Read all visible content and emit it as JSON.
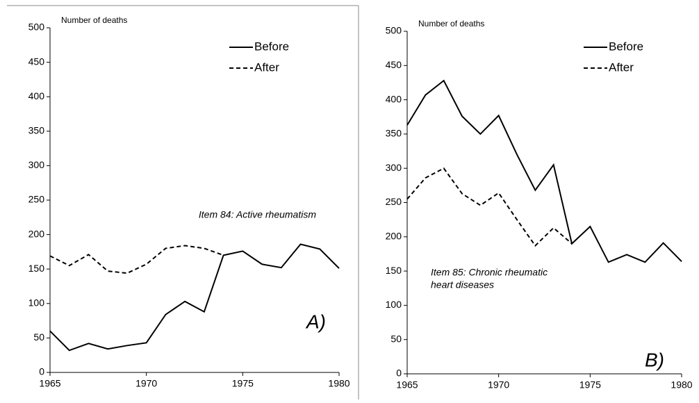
{
  "chart_data": [
    {
      "type": "line",
      "ylabel": "Number of deaths",
      "x": [
        1965,
        1966,
        1967,
        1968,
        1969,
        1970,
        1971,
        1972,
        1973,
        1974,
        1975,
        1976,
        1977,
        1978,
        1979,
        1980
      ],
      "series": [
        {
          "name": "Before",
          "color": "#000000",
          "dash": "solid",
          "values": [
            60,
            32,
            42,
            34,
            39,
            43,
            84,
            103,
            88,
            170,
            176,
            157,
            152,
            186,
            179,
            151
          ]
        },
        {
          "name": "After",
          "color": "#000000",
          "dash": "dashed",
          "values": [
            169,
            155,
            171,
            147,
            144,
            157,
            180,
            184,
            180,
            170,
            null,
            null,
            null,
            null,
            null,
            null
          ]
        }
      ],
      "xlim": [
        1965,
        1980
      ],
      "xticks": [
        1965,
        1970,
        1975,
        1980
      ],
      "ylim": [
        0,
        500
      ],
      "yticks": [
        0,
        50,
        100,
        150,
        200,
        250,
        300,
        350,
        400,
        450,
        500
      ],
      "annotation": [
        "Item 84: Active rheumatism"
      ],
      "panel_label": "A)",
      "legend": "upper right"
    },
    {
      "type": "line",
      "ylabel": "Number of deaths",
      "x": [
        1965,
        1966,
        1967,
        1968,
        1969,
        1970,
        1971,
        1972,
        1973,
        1974,
        1975,
        1976,
        1977,
        1978,
        1979,
        1980
      ],
      "series": [
        {
          "name": "Before",
          "color": "#000000",
          "dash": "solid",
          "values": [
            363,
            407,
            428,
            376,
            350,
            377,
            320,
            268,
            305,
            190,
            215,
            163,
            174,
            163,
            191,
            164
          ]
        },
        {
          "name": "After",
          "color": "#000000",
          "dash": "dashed",
          "values": [
            255,
            286,
            300,
            263,
            246,
            264,
            225,
            187,
            213,
            190,
            null,
            null,
            null,
            null,
            null,
            null
          ]
        }
      ],
      "xlim": [
        1965,
        1980
      ],
      "xticks": [
        1965,
        1970,
        1975,
        1980
      ],
      "ylim": [
        0,
        500
      ],
      "yticks": [
        0,
        50,
        100,
        150,
        200,
        250,
        300,
        350,
        400,
        450,
        500
      ],
      "annotation": [
        "Item 85: Chronic rheumatic",
        "heart diseases"
      ],
      "panel_label": "B)",
      "legend": "upper right"
    }
  ]
}
